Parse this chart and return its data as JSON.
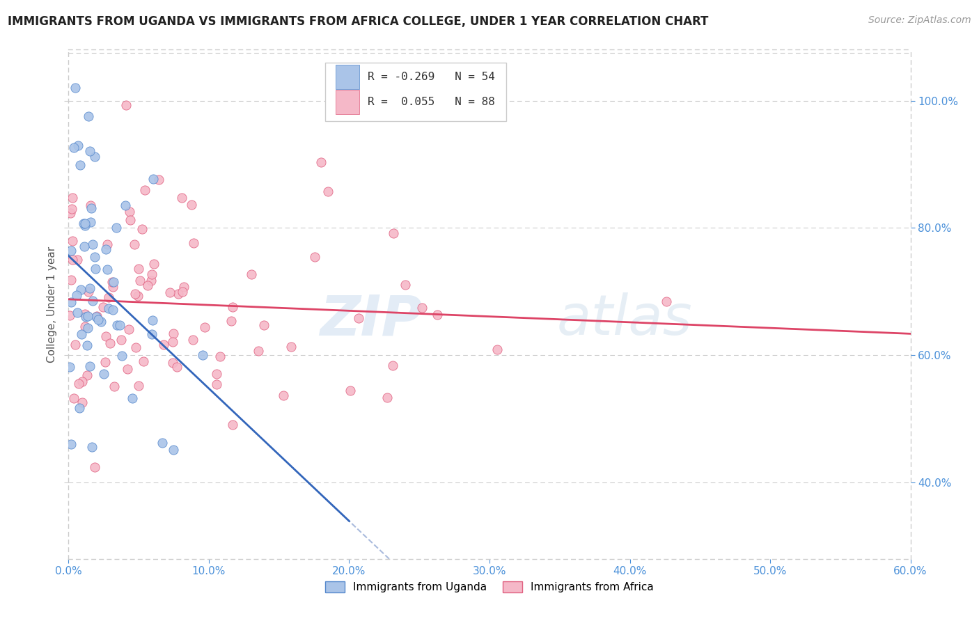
{
  "title": "IMMIGRANTS FROM UGANDA VS IMMIGRANTS FROM AFRICA COLLEGE, UNDER 1 YEAR CORRELATION CHART",
  "source": "Source: ZipAtlas.com",
  "ylabel": "College, Under 1 year",
  "legend_label1": "Immigrants from Uganda",
  "legend_label2": "Immigrants from Africa",
  "r1_text": "R = -0.269",
  "r2_text": "R =  0.055",
  "n1": 54,
  "n2": 88,
  "r1": -0.269,
  "r2": 0.055,
  "xlim": [
    0.0,
    0.6
  ],
  "ylim": [
    0.28,
    1.08
  ],
  "x_ticks": [
    0.0,
    0.1,
    0.2,
    0.3,
    0.4,
    0.5,
    0.6
  ],
  "y_ticks": [
    0.4,
    0.6,
    0.8,
    1.0
  ],
  "color_blue_fill": "#aac4e8",
  "color_pink_fill": "#f5b8c8",
  "color_blue_edge": "#5588cc",
  "color_pink_edge": "#e06080",
  "color_blue_line": "#3366bb",
  "color_pink_line": "#dd4466",
  "color_dashed": "#aabbdd",
  "watermark_zip": "ZIP",
  "watermark_atlas": "atlas",
  "title_fontsize": 12,
  "source_fontsize": 10,
  "tick_fontsize": 11,
  "right_tick_color": "#4a90d9",
  "bottom_tick_color": "#4a90d9"
}
